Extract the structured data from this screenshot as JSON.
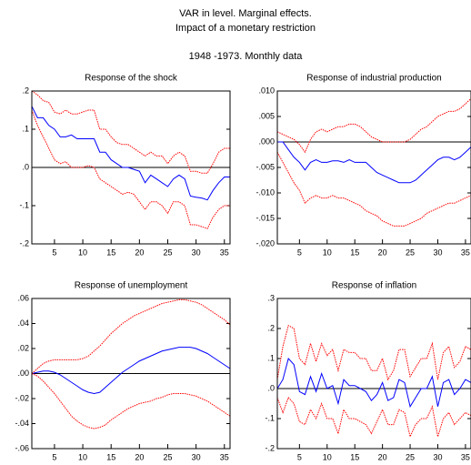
{
  "header": {
    "title": "VAR in level. Marginal effects.",
    "subtitle": "Impact of a monetary restriction",
    "period": "1948 -1973. Monthly data"
  },
  "chart_data": [
    {
      "type": "line",
      "title": "Response of the shock",
      "zero_line": true,
      "x": [
        1,
        2,
        3,
        4,
        5,
        6,
        7,
        8,
        9,
        10,
        11,
        12,
        13,
        14,
        15,
        16,
        17,
        18,
        19,
        20,
        21,
        22,
        23,
        24,
        25,
        26,
        27,
        28,
        29,
        30,
        31,
        32,
        33,
        34,
        35,
        36
      ],
      "xlim": [
        1,
        36
      ],
      "xticks": [
        5,
        10,
        15,
        20,
        25,
        30,
        35
      ],
      "ylim": [
        -0.2,
        0.2
      ],
      "yticks": [
        {
          "value": -0.2,
          "label": "-.2"
        },
        {
          "value": -0.1,
          "label": "-.1"
        },
        {
          "value": 0,
          "label": ".0"
        },
        {
          "value": 0.1,
          "label": ".1"
        },
        {
          "value": 0.2,
          "label": ".2"
        }
      ],
      "series": [
        {
          "color": "#0000ff",
          "style": "solid",
          "values": [
            0.16,
            0.13,
            0.13,
            0.11,
            0.1,
            0.08,
            0.08,
            0.085,
            0.075,
            0.075,
            0.075,
            0.075,
            0.04,
            0.04,
            0.02,
            0.01,
            0,
            0,
            -0.005,
            -0.01,
            -0.04,
            -0.02,
            -0.03,
            -0.04,
            -0.05,
            -0.03,
            -0.02,
            -0.03,
            -0.075,
            -0.078,
            -0.08,
            -0.085,
            -0.06,
            -0.04,
            -0.025,
            -0.025
          ]
        },
        {
          "color": "#ff0000",
          "style": "dotted",
          "values": [
            0.2,
            0.19,
            0.175,
            0.17,
            0.145,
            0.14,
            0.15,
            0.14,
            0.14,
            0.145,
            0.15,
            0.15,
            0.1,
            0.1,
            0.08,
            0.065,
            0.06,
            0.06,
            0.05,
            0.04,
            0.03,
            0.04,
            0.03,
            0.03,
            0.01,
            0.03,
            0.04,
            0.03,
            -0.01,
            -0.01,
            -0.015,
            -0.015,
            0.01,
            0.04,
            0.05,
            0.05
          ]
        },
        {
          "color": "#ff0000",
          "style": "dotted",
          "values": [
            0.15,
            0.11,
            0.08,
            0.05,
            0.02,
            0.01,
            0.015,
            0,
            0,
            0,
            0.005,
            0,
            -0.03,
            -0.04,
            -0.05,
            -0.06,
            -0.07,
            -0.065,
            -0.07,
            -0.09,
            -0.11,
            -0.09,
            -0.09,
            -0.1,
            -0.12,
            -0.09,
            -0.09,
            -0.1,
            -0.15,
            -0.15,
            -0.155,
            -0.16,
            -0.13,
            -0.11,
            -0.1,
            -0.1
          ]
        }
      ]
    },
    {
      "type": "line",
      "title": "Response of industrial production",
      "zero_line": true,
      "x": [
        1,
        2,
        3,
        4,
        5,
        6,
        7,
        8,
        9,
        10,
        11,
        12,
        13,
        14,
        15,
        16,
        17,
        18,
        19,
        20,
        21,
        22,
        23,
        24,
        25,
        26,
        27,
        28,
        29,
        30,
        31,
        32,
        33,
        34,
        35,
        36
      ],
      "xlim": [
        1,
        36
      ],
      "xticks": [
        5,
        10,
        15,
        20,
        25,
        30,
        35
      ],
      "ylim": [
        -0.02,
        0.01
      ],
      "yticks": [
        {
          "value": -0.02,
          "label": "-.020"
        },
        {
          "value": -0.015,
          "label": "-.015"
        },
        {
          "value": -0.01,
          "label": "-.010"
        },
        {
          "value": -0.005,
          "label": "-.005"
        },
        {
          "value": 0,
          "label": ".000"
        },
        {
          "value": 0.005,
          "label": ".005"
        },
        {
          "value": 0.01,
          "label": ".010"
        }
      ],
      "series": [
        {
          "color": "#0000ff",
          "style": "solid",
          "values": [
            0,
            0,
            -0.0015,
            -0.003,
            -0.004,
            -0.0055,
            -0.004,
            -0.0035,
            -0.004,
            -0.004,
            -0.0037,
            -0.0037,
            -0.004,
            -0.0035,
            -0.004,
            -0.004,
            -0.004,
            -0.005,
            -0.006,
            -0.0065,
            -0.007,
            -0.0075,
            -0.008,
            -0.008,
            -0.008,
            -0.0075,
            -0.0065,
            -0.0055,
            -0.0045,
            -0.0035,
            -0.003,
            -0.003,
            -0.0035,
            -0.003,
            -0.002,
            -0.001
          ]
        },
        {
          "color": "#ff0000",
          "style": "dotted",
          "values": [
            0.002,
            0.0015,
            0.001,
            0.0005,
            -0.0005,
            -0.002,
            0.0005,
            0.002,
            0.0025,
            0.002,
            0.0025,
            0.003,
            0.003,
            0.0035,
            0.0035,
            0.003,
            0.002,
            0.001,
            0.0005,
            0,
            0,
            0,
            0,
            0,
            0.0005,
            0.0015,
            0.0025,
            0.003,
            0.004,
            0.005,
            0.0055,
            0.006,
            0.006,
            0.0065,
            0.0075,
            0.0085
          ]
        },
        {
          "color": "#ff0000",
          "style": "dotted",
          "values": [
            -0.002,
            -0.004,
            -0.006,
            -0.008,
            -0.0095,
            -0.012,
            -0.011,
            -0.0105,
            -0.011,
            -0.011,
            -0.0105,
            -0.011,
            -0.011,
            -0.0115,
            -0.012,
            -0.0125,
            -0.0135,
            -0.014,
            -0.0145,
            -0.0155,
            -0.016,
            -0.0165,
            -0.0165,
            -0.0165,
            -0.016,
            -0.0155,
            -0.015,
            -0.014,
            -0.0135,
            -0.013,
            -0.0125,
            -0.012,
            -0.012,
            -0.0115,
            -0.011,
            -0.0105
          ]
        }
      ]
    },
    {
      "type": "line",
      "title": "Response of unemployment",
      "zero_line": true,
      "x": [
        1,
        2,
        3,
        4,
        5,
        6,
        7,
        8,
        9,
        10,
        11,
        12,
        13,
        14,
        15,
        16,
        17,
        18,
        19,
        20,
        21,
        22,
        23,
        24,
        25,
        26,
        27,
        28,
        29,
        30,
        31,
        32,
        33,
        34,
        35,
        36
      ],
      "xlim": [
        1,
        36
      ],
      "xticks": [
        5,
        10,
        15,
        20,
        25,
        30,
        35
      ],
      "ylim": [
        -0.06,
        0.06
      ],
      "yticks": [
        {
          "value": -0.06,
          "label": "-.06"
        },
        {
          "value": -0.04,
          "label": "-.04"
        },
        {
          "value": -0.02,
          "label": "-.02"
        },
        {
          "value": 0,
          "label": ".00"
        },
        {
          "value": 0.02,
          "label": ".02"
        },
        {
          "value": 0.04,
          "label": ".04"
        },
        {
          "value": 0.06,
          "label": ".06"
        }
      ],
      "series": [
        {
          "color": "#0000ff",
          "style": "solid",
          "values": [
            0,
            0.001,
            0.002,
            0.002,
            0.001,
            -0.001,
            -0.004,
            -0.007,
            -0.01,
            -0.013,
            -0.015,
            -0.016,
            -0.015,
            -0.011,
            -0.007,
            -0.003,
            0.001,
            0.004,
            0.007,
            0.01,
            0.012,
            0.014,
            0.016,
            0.018,
            0.019,
            0.02,
            0.021,
            0.021,
            0.021,
            0.02,
            0.018,
            0.016,
            0.013,
            0.01,
            0.007,
            0.004
          ]
        },
        {
          "color": "#ff0000",
          "style": "dotted",
          "values": [
            0,
            0.004,
            0.008,
            0.01,
            0.011,
            0.011,
            0.011,
            0.011,
            0.011,
            0.012,
            0.014,
            0.018,
            0.022,
            0.027,
            0.032,
            0.036,
            0.04,
            0.043,
            0.046,
            0.048,
            0.05,
            0.052,
            0.054,
            0.056,
            0.057,
            0.058,
            0.059,
            0.059,
            0.058,
            0.057,
            0.055,
            0.052,
            0.049,
            0.046,
            0.043,
            0.039
          ]
        },
        {
          "color": "#ff0000",
          "style": "dotted",
          "values": [
            0,
            -0.002,
            -0.006,
            -0.011,
            -0.016,
            -0.022,
            -0.028,
            -0.034,
            -0.038,
            -0.041,
            -0.043,
            -0.044,
            -0.043,
            -0.041,
            -0.037,
            -0.034,
            -0.031,
            -0.028,
            -0.026,
            -0.024,
            -0.023,
            -0.022,
            -0.02,
            -0.019,
            -0.017,
            -0.016,
            -0.016,
            -0.016,
            -0.017,
            -0.018,
            -0.02,
            -0.022,
            -0.025,
            -0.028,
            -0.031,
            -0.034
          ]
        }
      ]
    },
    {
      "type": "line",
      "title": "Response of inflation",
      "zero_line": true,
      "x": [
        1,
        2,
        3,
        4,
        5,
        6,
        7,
        8,
        9,
        10,
        11,
        12,
        13,
        14,
        15,
        16,
        17,
        18,
        19,
        20,
        21,
        22,
        23,
        24,
        25,
        26,
        27,
        28,
        29,
        30,
        31,
        32,
        33,
        34,
        35,
        36
      ],
      "xlim": [
        1,
        36
      ],
      "xticks": [
        5,
        10,
        15,
        20,
        25,
        30,
        35
      ],
      "ylim": [
        -0.2,
        0.3
      ],
      "yticks": [
        {
          "value": -0.2,
          "label": "-.2"
        },
        {
          "value": -0.1,
          "label": "-.1"
        },
        {
          "value": 0,
          "label": ".0"
        },
        {
          "value": 0.1,
          "label": ".1"
        },
        {
          "value": 0.2,
          "label": ".2"
        },
        {
          "value": 0.3,
          "label": ".3"
        }
      ],
      "series": [
        {
          "color": "#0000ff",
          "style": "solid",
          "values": [
            0,
            0.03,
            0.1,
            0.08,
            -0.01,
            -0.02,
            0.04,
            -0.01,
            0.05,
            0,
            0.01,
            -0.05,
            0.03,
            0.01,
            0.01,
            0,
            -0.01,
            -0.04,
            -0.02,
            0.02,
            -0.04,
            -0.03,
            0.03,
            0.02,
            -0.06,
            -0.03,
            0,
            0,
            0.04,
            -0.06,
            0.02,
            0.03,
            -0.02,
            0,
            0.03,
            0.02
          ]
        },
        {
          "color": "#ff0000",
          "style": "dotted",
          "values": [
            0.03,
            0.14,
            0.21,
            0.2,
            0.1,
            0.08,
            0.15,
            0.09,
            0.15,
            0.11,
            0.13,
            0.06,
            0.13,
            0.12,
            0.12,
            0.1,
            0.1,
            0.06,
            0.06,
            0.1,
            0.03,
            0.06,
            0.13,
            0.13,
            0.04,
            0.07,
            0.1,
            0.1,
            0.15,
            0.03,
            0.12,
            0.14,
            0.07,
            0.09,
            0.14,
            0.13
          ]
        },
        {
          "color": "#ff0000",
          "style": "dotted",
          "values": [
            -0.03,
            -0.08,
            -0.03,
            -0.05,
            -0.11,
            -0.12,
            -0.07,
            -0.1,
            -0.05,
            -0.1,
            -0.1,
            -0.15,
            -0.07,
            -0.1,
            -0.1,
            -0.11,
            -0.12,
            -0.15,
            -0.11,
            -0.07,
            -0.12,
            -0.12,
            -0.07,
            -0.08,
            -0.16,
            -0.12,
            -0.1,
            -0.1,
            -0.06,
            -0.16,
            -0.1,
            -0.08,
            -0.12,
            -0.1,
            -0.08,
            -0.09
          ]
        }
      ]
    }
  ]
}
